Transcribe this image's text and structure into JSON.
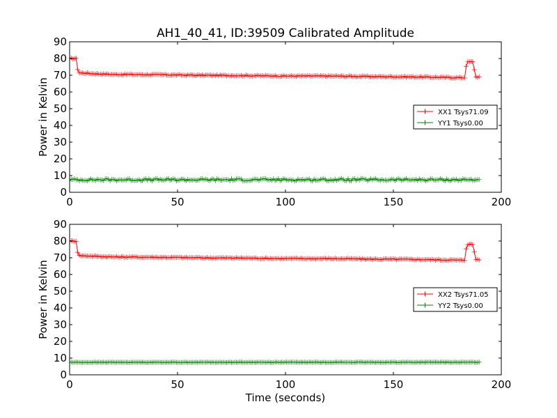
{
  "figure": {
    "title": "AH1_40_41, ID:39509 Calibrated Amplitude"
  },
  "chart_data": [
    {
      "type": "line",
      "ylabel": "Power in Kelvin",
      "xlabel": "",
      "xlim": [
        0,
        200
      ],
      "ylim": [
        0,
        90
      ],
      "xticks": [
        0,
        50,
        100,
        150,
        200
      ],
      "yticks": [
        0,
        10,
        20,
        30,
        40,
        50,
        60,
        70,
        80,
        90
      ],
      "grid": false,
      "legend_position": "right",
      "series": [
        {
          "name": "XX1 Tsys71.09",
          "color": "#ff0000",
          "marker": "+",
          "x": [
            0,
            3,
            4,
            10,
            20,
            40,
            60,
            80,
            100,
            120,
            140,
            160,
            183,
            184,
            186,
            187,
            188,
            190
          ],
          "y": [
            80,
            80,
            71.5,
            71,
            70.5,
            70.3,
            70,
            69.8,
            69.5,
            69.5,
            69.2,
            69,
            68.5,
            78,
            78,
            78,
            69,
            69
          ]
        },
        {
          "name": "YY1 Tsys0.00",
          "color": "#008000",
          "marker": "+",
          "x": [
            0,
            190
          ],
          "y": [
            7.5,
            7.5
          ]
        }
      ]
    },
    {
      "type": "line",
      "ylabel": "Power in Kelvin",
      "xlabel": "Time (seconds)",
      "xlim": [
        0,
        200
      ],
      "ylim": [
        0,
        90
      ],
      "xticks": [
        0,
        50,
        100,
        150,
        200
      ],
      "yticks": [
        0,
        10,
        20,
        30,
        40,
        50,
        60,
        70,
        80,
        90
      ],
      "grid": false,
      "legend_position": "right",
      "series": [
        {
          "name": "XX2 Tsys71.05",
          "color": "#ff0000",
          "marker": "+",
          "x": [
            0,
            3,
            4,
            10,
            20,
            40,
            60,
            80,
            100,
            120,
            140,
            160,
            183,
            184,
            186,
            187,
            188,
            190
          ],
          "y": [
            80,
            80,
            71.3,
            71,
            70.5,
            70.3,
            70,
            69.8,
            69.5,
            69.5,
            69.2,
            69,
            68.5,
            78,
            78,
            78,
            69,
            69
          ]
        },
        {
          "name": "YY2 Tsys0.00",
          "color": "#008000",
          "marker": "+",
          "x": [
            0,
            190
          ],
          "y": [
            7.5,
            7.5
          ]
        }
      ]
    }
  ]
}
